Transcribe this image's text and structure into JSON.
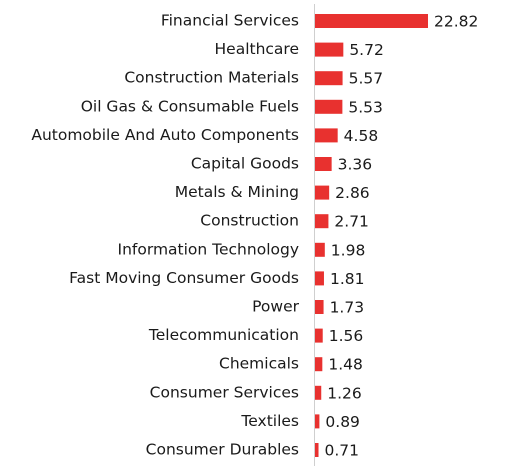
{
  "chart_data": {
    "type": "barh",
    "categories": [
      "Financial Services",
      "Healthcare",
      "Construction Materials",
      "Oil Gas & Consumable Fuels",
      "Automobile And Auto Components",
      "Capital Goods",
      "Metals & Mining",
      "Construction",
      "Information Technology",
      "Fast Moving Consumer Goods",
      "Power",
      "Telecommunication",
      "Chemicals",
      "Consumer Services",
      "Textiles",
      "Consumer Durables"
    ],
    "values": [
      22.82,
      5.72,
      5.57,
      5.53,
      4.58,
      3.36,
      2.86,
      2.71,
      1.98,
      1.81,
      1.73,
      1.56,
      1.48,
      1.26,
      0.89,
      0.71
    ],
    "color": "#e8312f"
  }
}
